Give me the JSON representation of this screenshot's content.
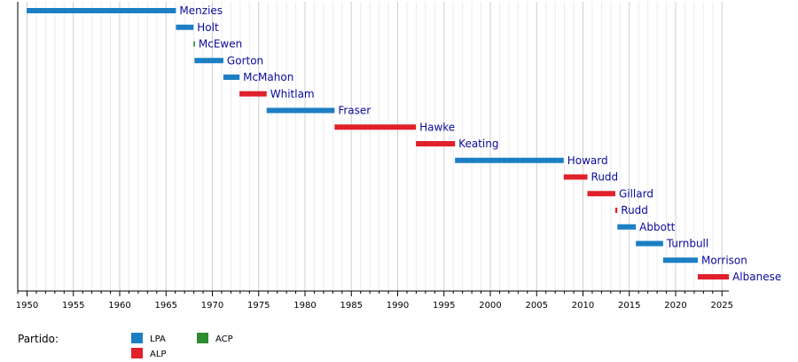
{
  "chart_data": {
    "type": "bar",
    "orientation": "horizontal-timeline",
    "xlim": [
      1949,
      2026
    ],
    "x_ticks": [
      1950,
      1955,
      1960,
      1965,
      1970,
      1975,
      1980,
      1985,
      1990,
      1995,
      2000,
      2005,
      2010,
      2015,
      2020,
      2025
    ],
    "grid": "vertical yearly gridlines",
    "party_colors": {
      "LPA": "#1c7fc4",
      "ALP": "#e0202a",
      "ACP": "#2e8b2e"
    },
    "series": [
      {
        "name": "Menzies",
        "party": "LPA",
        "start": 1949.96,
        "end": 1966.07
      },
      {
        "name": "Holt",
        "party": "LPA",
        "start": 1966.07,
        "end": 1967.97
      },
      {
        "name": "McEwen",
        "party": "ACP",
        "start": 1967.97,
        "end": 1968.07
      },
      {
        "name": "Gorton",
        "party": "LPA",
        "start": 1968.07,
        "end": 1971.19
      },
      {
        "name": "McMahon",
        "party": "LPA",
        "start": 1971.19,
        "end": 1972.93
      },
      {
        "name": "Whitlam",
        "party": "ALP",
        "start": 1972.93,
        "end": 1975.86
      },
      {
        "name": "Fraser",
        "party": "LPA",
        "start": 1975.86,
        "end": 1983.19
      },
      {
        "name": "Hawke",
        "party": "ALP",
        "start": 1983.19,
        "end": 1991.97
      },
      {
        "name": "Keating",
        "party": "ALP",
        "start": 1991.97,
        "end": 1996.19
      },
      {
        "name": "Howard",
        "party": "LPA",
        "start": 1996.19,
        "end": 2007.92
      },
      {
        "name": "Rudd",
        "party": "ALP",
        "start": 2007.92,
        "end": 2010.48
      },
      {
        "name": "Gillard",
        "party": "ALP",
        "start": 2010.48,
        "end": 2013.49
      },
      {
        "name": "Rudd",
        "party": "ALP",
        "start": 2013.49,
        "end": 2013.71
      },
      {
        "name": "Abbott",
        "party": "LPA",
        "start": 2013.71,
        "end": 2015.71
      },
      {
        "name": "Turnbull",
        "party": "LPA",
        "start": 2015.71,
        "end": 2018.65
      },
      {
        "name": "Morrison",
        "party": "LPA",
        "start": 2018.65,
        "end": 2022.39
      },
      {
        "name": "Albanese",
        "party": "ALP",
        "start": 2022.39,
        "end": 2025.75
      }
    ]
  },
  "legend": {
    "title": "Partido:",
    "items": [
      {
        "party": "LPA",
        "label": "LPA"
      },
      {
        "party": "ALP",
        "label": "ALP"
      },
      {
        "party": "ACP",
        "label": "ACP"
      }
    ]
  }
}
